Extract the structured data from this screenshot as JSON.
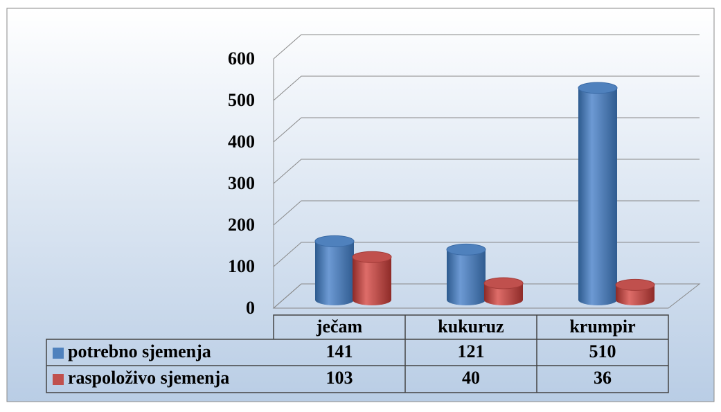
{
  "chart_data": {
    "type": "bar3d",
    "categories": [
      "ječam",
      "kukuruz",
      "krumpir"
    ],
    "series": [
      {
        "name": "potrebno sjemenja",
        "color": "#4f81bd",
        "values": [
          141,
          121,
          510
        ]
      },
      {
        "name": "raspoloživo sjemenja",
        "color": "#c0504d",
        "values": [
          103,
          40,
          36
        ]
      }
    ],
    "ylim": [
      0,
      600
    ],
    "yticks": [
      0,
      100,
      200,
      300,
      400,
      500,
      600
    ],
    "grid": true,
    "legend": "table"
  }
}
